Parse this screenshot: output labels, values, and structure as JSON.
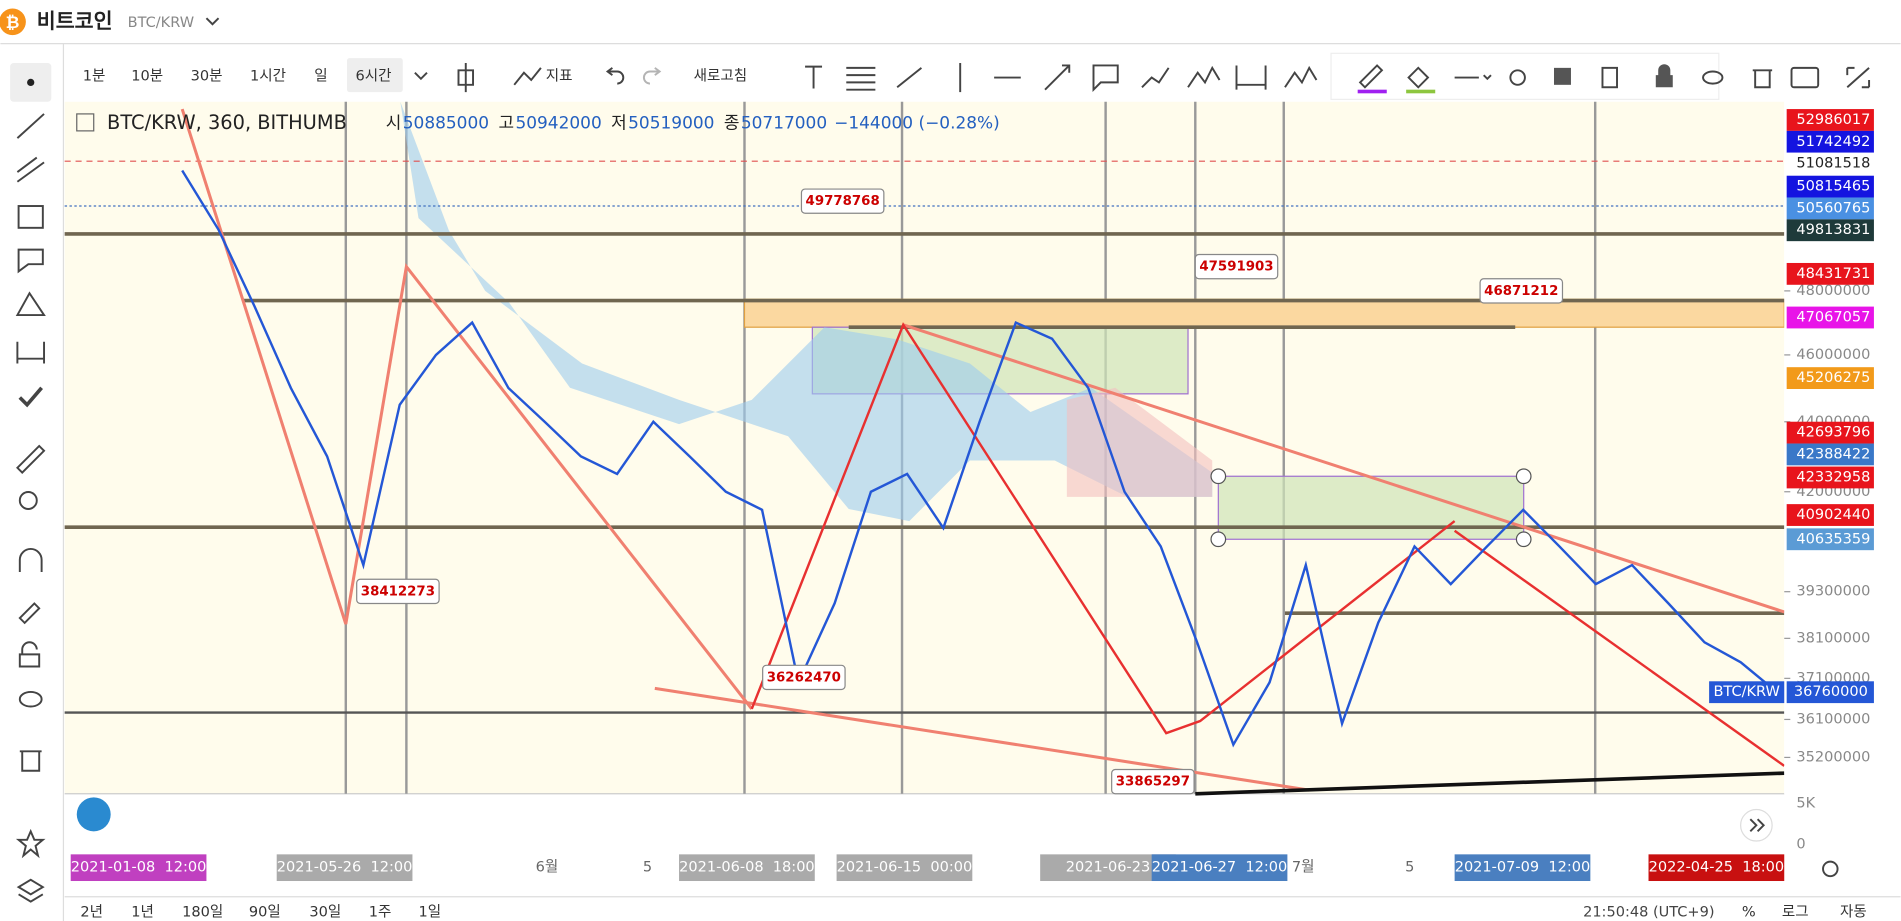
{
  "header": {
    "name": "비트코인",
    "symbol": "BTC/KRW"
  },
  "toolbar": {
    "intervals": [
      "1분",
      "10분",
      "30분",
      "1시간",
      "일",
      "6시간"
    ],
    "indicator": "지표",
    "refresh": "새로고침"
  },
  "legend": {
    "title": "BTC/KRW, 360, BITHUMB",
    "open_label": "시",
    "open": 50885000,
    "high_label": "고",
    "high": 50942000,
    "low_label": "저",
    "low": 50519000,
    "close_label": "종",
    "close": 50717000,
    "change": "−144000 (−0.28%)"
  },
  "chart_data": {
    "type": "line",
    "log": true,
    "series": [
      {
        "name": "BTC/KRW",
        "color": "#2457d6",
        "values": [
          52000000,
          50000000,
          47500000,
          45000000,
          43000000,
          40000000,
          44500000,
          46000000,
          47000000,
          45000000,
          44000000,
          43000000,
          42500000,
          44000000,
          43000000,
          42000000,
          41500000,
          37000000,
          39000000,
          42000000,
          42500000,
          41000000,
          44000000,
          47000000,
          46500000,
          45000000,
          42000000,
          40500000,
          38000000,
          35500000,
          37000000,
          40000000,
          36000000,
          38500000,
          40500000,
          39500000,
          40500000,
          41500000,
          40500000,
          39500000,
          40000000,
          39000000,
          38000000,
          37500000,
          36760000
        ]
      }
    ],
    "ylim": [
      34360000,
      54430000
    ],
    "yticks": [
      48000000,
      46000000,
      44000000,
      42000000,
      39300000,
      38100000,
      37100000,
      36100000,
      35200000
    ],
    "volume_ticks": [
      "5K",
      "0"
    ]
  },
  "price_tags": [
    {
      "value": 52986017,
      "color": "#e8141c"
    },
    {
      "value": 51742492,
      "color": "#1414e0"
    },
    {
      "value": 51081518,
      "color": "#ffffff"
    },
    {
      "value": 50815465,
      "color": "#1414e0"
    },
    {
      "value": 50560765,
      "color": "#4a90e2"
    },
    {
      "value": 49813831,
      "color": "#1e3a3a"
    },
    {
      "value": 48431731,
      "color": "#e8141c"
    },
    {
      "value": 47067057,
      "color": "#e814e8"
    },
    {
      "value": 45206275,
      "color": "#f29a1a"
    },
    {
      "value": 42693796,
      "color": "#e8141c"
    },
    {
      "value": 42388422,
      "color": "#3a78c8"
    },
    {
      "value": 42332958,
      "color": "#e8141c"
    },
    {
      "value": 40902440,
      "color": "#e8141c"
    },
    {
      "value": 40635359,
      "color": "#5b9bd5"
    }
  ],
  "annotations": [
    49778768,
    47591903,
    46871212,
    38412273,
    36262470,
    33865297
  ],
  "date_labels": [
    {
      "text": "2021-01-08  12:00",
      "color": "#c040c0"
    },
    {
      "text": "2021-05-26  12:00",
      "color": "#aaaaaa"
    },
    {
      "text": "6월"
    },
    {
      "text": "5"
    },
    {
      "text": "2021-06-08  18:00",
      "color": "#aaaaaa"
    },
    {
      "text": "2021-06-15  00:00",
      "color": "#aaaaaa"
    },
    {
      "text": "2021-06-23",
      "color": "#aaaaaa"
    },
    {
      "text": "2021-06-27  12:00",
      "color": "#4a7fc0"
    },
    {
      "text": "7월"
    },
    {
      "text": "5"
    },
    {
      "text": "2021-07-09  12:00",
      "color": "#4a7fc0"
    },
    {
      "text": "2022-04-25  18:00",
      "color": "#c81010"
    }
  ],
  "ranges": [
    "2년",
    "1년",
    "180일",
    "90일",
    "30일",
    "1주",
    "1일"
  ],
  "status": {
    "time": "21:50:48 (UTC+9)",
    "percent": "%",
    "log": "로그",
    "auto": "자동"
  }
}
